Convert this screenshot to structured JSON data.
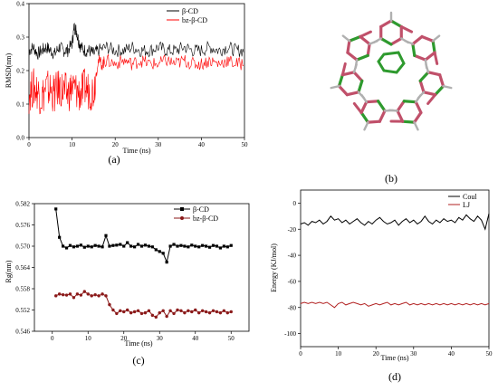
{
  "panels": [
    {
      "id": "a",
      "caption": "(a)",
      "chart_data": {
        "type": "line",
        "xlabel": "Time (ns)",
        "ylabel": "RMSD(nm)",
        "xlim": [
          0,
          50
        ],
        "ylim": [
          0,
          0.4
        ],
        "xticks": [
          0,
          10,
          20,
          30,
          40,
          50
        ],
        "yticks": [
          0.0,
          0.1,
          0.2,
          0.3,
          0.4
        ],
        "legend_position": "top-right",
        "series": [
          {
            "name": "β-CD",
            "color": "#000000",
            "x": [
              0,
              1,
              2,
              3,
              4,
              5,
              6,
              7,
              8,
              9,
              10,
              10.5,
              11,
              11.5,
              12,
              13,
              14,
              15,
              16,
              18,
              20,
              22,
              24,
              26,
              28,
              30,
              32,
              34,
              36,
              38,
              40,
              42,
              44,
              46,
              48,
              50
            ],
            "y": [
              0.26,
              0.27,
              0.25,
              0.26,
              0.27,
              0.26,
              0.25,
              0.27,
              0.26,
              0.26,
              0.28,
              0.33,
              0.32,
              0.29,
              0.27,
              0.26,
              0.26,
              0.25,
              0.26,
              0.27,
              0.26,
              0.26,
              0.27,
              0.26,
              0.26,
              0.27,
              0.26,
              0.26,
              0.27,
              0.26,
              0.26,
              0.27,
              0.26,
              0.27,
              0.26,
              0.26
            ]
          },
          {
            "name": "bz-β-CD",
            "color": "#ff0000",
            "x": [
              0,
              1,
              2,
              3,
              4,
              5,
              6,
              7,
              8,
              9,
              10,
              11,
              12,
              13,
              14,
              15,
              16,
              17,
              18,
              20,
              22,
              24,
              26,
              28,
              30,
              32,
              34,
              36,
              38,
              40,
              42,
              44,
              46,
              48,
              50
            ],
            "y": [
              0.13,
              0.15,
              0.14,
              0.12,
              0.15,
              0.14,
              0.13,
              0.15,
              0.14,
              0.13,
              0.15,
              0.14,
              0.13,
              0.15,
              0.14,
              0.14,
              0.23,
              0.22,
              0.23,
              0.22,
              0.23,
              0.22,
              0.23,
              0.22,
              0.22,
              0.23,
              0.22,
              0.23,
              0.22,
              0.22,
              0.23,
              0.22,
              0.23,
              0.22,
              0.22
            ]
          }
        ]
      }
    },
    {
      "id": "b",
      "caption": "(b)"
    },
    {
      "id": "c",
      "caption": "(c)",
      "chart_data": {
        "type": "line",
        "xlabel": "Time (ns)",
        "ylabel": "Rg(nm)",
        "xlim": [
          -5,
          55
        ],
        "ylim": [
          0.546,
          0.582
        ],
        "xticks": [
          0,
          10,
          20,
          30,
          40,
          50
        ],
        "yticks": [
          0.546,
          0.552,
          0.558,
          0.564,
          0.57,
          0.576,
          0.582
        ],
        "legend_position": "top-right",
        "series": [
          {
            "name": "β-CD",
            "color": "#000000",
            "marker": "square",
            "x": [
              1,
              2,
              3,
              4,
              5,
              6,
              7,
              8,
              9,
              10,
              11,
              12,
              13,
              14,
              15,
              16,
              17,
              18,
              19,
              20,
              21,
              22,
              23,
              24,
              25,
              26,
              27,
              28,
              29,
              30,
              31,
              32,
              33,
              34,
              35,
              36,
              37,
              38,
              39,
              40,
              41,
              42,
              43,
              44,
              45,
              46,
              47,
              48,
              49,
              50
            ],
            "y": [
              0.5805,
              0.5725,
              0.57,
              0.5695,
              0.5702,
              0.5698,
              0.57,
              0.5703,
              0.5697,
              0.57,
              0.5698,
              0.5702,
              0.57,
              0.5698,
              0.573,
              0.57,
              0.5702,
              0.5703,
              0.5705,
              0.57,
              0.571,
              0.57,
              0.5698,
              0.5705,
              0.57,
              0.5703,
              0.57,
              0.5698,
              0.569,
              0.5685,
              0.568,
              0.5655,
              0.57,
              0.5705,
              0.57,
              0.5702,
              0.57,
              0.5698,
              0.5703,
              0.57,
              0.5698,
              0.5702,
              0.57,
              0.5697,
              0.5702,
              0.57,
              0.5695,
              0.57,
              0.5698,
              0.5702
            ]
          },
          {
            "name": "bz-β-CD",
            "color": "#8b1a1a",
            "marker": "circle",
            "x": [
              1,
              2,
              3,
              4,
              5,
              6,
              7,
              8,
              9,
              10,
              11,
              12,
              13,
              14,
              15,
              16,
              17,
              18,
              19,
              20,
              21,
              22,
              23,
              24,
              25,
              26,
              27,
              28,
              29,
              30,
              31,
              32,
              33,
              34,
              35,
              36,
              37,
              38,
              39,
              40,
              41,
              42,
              43,
              44,
              45,
              46,
              47,
              48,
              49,
              50
            ],
            "y": [
              0.556,
              0.5565,
              0.5563,
              0.5562,
              0.5565,
              0.5555,
              0.5565,
              0.5562,
              0.5572,
              0.5565,
              0.556,
              0.5563,
              0.556,
              0.5565,
              0.556,
              0.5535,
              0.552,
              0.551,
              0.5518,
              0.5515,
              0.552,
              0.5512,
              0.5515,
              0.5518,
              0.551,
              0.5512,
              0.5518,
              0.5505,
              0.55,
              0.5512,
              0.5518,
              0.5502,
              0.5518,
              0.551,
              0.552,
              0.5518,
              0.5512,
              0.5518,
              0.5515,
              0.552,
              0.5512,
              0.5518,
              0.5515,
              0.5512,
              0.5518,
              0.5515,
              0.5512,
              0.5518,
              0.5512,
              0.5515
            ]
          }
        ]
      }
    },
    {
      "id": "d",
      "caption": "(d)",
      "chart_data": {
        "type": "line",
        "xlabel": "Time (ns)",
        "ylabel": "Energy (KJ/mol)",
        "xlim": [
          0,
          50
        ],
        "ylim": [
          -110,
          10
        ],
        "xticks": [
          0,
          10,
          20,
          30,
          40,
          50
        ],
        "yticks": [
          -100,
          -80,
          -60,
          -40,
          -20,
          0
        ],
        "legend_position": "top-right",
        "series": [
          {
            "name": "Coul",
            "color": "#000000",
            "x": [
              0,
              1,
              2,
              3,
              4,
              5,
              6,
              7,
              8,
              9,
              10,
              11,
              12,
              13,
              14,
              15,
              16,
              17,
              18,
              19,
              20,
              21,
              22,
              23,
              24,
              25,
              26,
              27,
              28,
              29,
              30,
              31,
              32,
              33,
              34,
              35,
              36,
              37,
              38,
              39,
              40,
              41,
              42,
              43,
              44,
              45,
              46,
              47,
              48,
              49,
              50
            ],
            "y": [
              -16,
              -15,
              -17,
              -14,
              -15,
              -13,
              -16,
              -14,
              -10,
              -13,
              -12,
              -15,
              -13,
              -16,
              -14,
              -12,
              -15,
              -17,
              -14,
              -16,
              -13,
              -11,
              -14,
              -16,
              -15,
              -13,
              -17,
              -14,
              -12,
              -15,
              -13,
              -16,
              -14,
              -10,
              -14,
              -16,
              -13,
              -15,
              -12,
              -14,
              -13,
              -15,
              -11,
              -13,
              -9,
              -12,
              -14,
              -10,
              -13,
              -20,
              -8
            ]
          },
          {
            "name": "LJ",
            "color": "#b22222",
            "x": [
              0,
              1,
              2,
              3,
              4,
              5,
              6,
              7,
              8,
              9,
              10,
              11,
              12,
              13,
              14,
              15,
              16,
              17,
              18,
              19,
              20,
              21,
              22,
              23,
              24,
              25,
              26,
              27,
              28,
              29,
              30,
              31,
              32,
              33,
              34,
              35,
              36,
              37,
              38,
              39,
              40,
              41,
              42,
              43,
              44,
              45,
              46,
              47,
              48,
              49,
              50
            ],
            "y": [
              -77,
              -76,
              -77,
              -76,
              -77,
              -76,
              -77,
              -76,
              -78,
              -80,
              -77,
              -76,
              -78,
              -77,
              -76,
              -77,
              -78,
              -77,
              -79,
              -78,
              -77,
              -78,
              -77,
              -76,
              -78,
              -77,
              -78,
              -77,
              -76,
              -78,
              -77,
              -78,
              -77,
              -78,
              -77,
              -78,
              -77,
              -78,
              -77,
              -78,
              -77,
              -78,
              -77,
              -78,
              -77,
              -78,
              -77,
              -78,
              -77,
              -78,
              -77
            ]
          }
        ]
      }
    }
  ],
  "structure": {
    "ring_colors": [
      "#c0506a",
      "#2e9a2e"
    ]
  }
}
